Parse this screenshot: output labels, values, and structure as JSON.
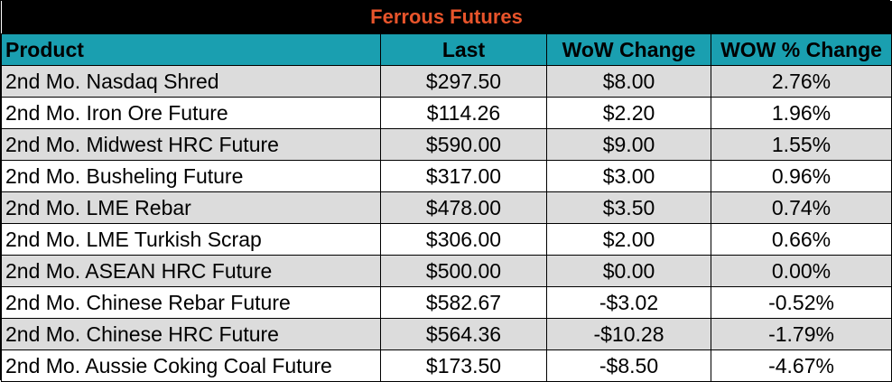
{
  "title": "Ferrous Futures",
  "colors": {
    "title_bg": "#000000",
    "title_text": "#e8542b",
    "header_bg": "#1a9fb0",
    "row_shade": "#dcdcdc",
    "row_plain": "#ffffff"
  },
  "headers": {
    "product": "Product",
    "last": "Last",
    "wow_change": "WoW Change",
    "wow_pct_change": "WOW % Change"
  },
  "rows": [
    {
      "product": "2nd Mo. Nasdaq Shred",
      "last": "$297.50",
      "wow_change": "$8.00",
      "wow_pct_change": "2.76%"
    },
    {
      "product": "2nd Mo. Iron Ore Future",
      "last": "$114.26",
      "wow_change": "$2.20",
      "wow_pct_change": "1.96%"
    },
    {
      "product": "2nd Mo. Midwest HRC Future",
      "last": "$590.00",
      "wow_change": "$9.00",
      "wow_pct_change": "1.55%"
    },
    {
      "product": "2nd Mo. Busheling Future",
      "last": "$317.00",
      "wow_change": "$3.00",
      "wow_pct_change": "0.96%"
    },
    {
      "product": "2nd Mo. LME Rebar",
      "last": "$478.00",
      "wow_change": "$3.50",
      "wow_pct_change": "0.74%"
    },
    {
      "product": "2nd Mo. LME Turkish Scrap",
      "last": "$306.00",
      "wow_change": "$2.00",
      "wow_pct_change": "0.66%"
    },
    {
      "product": "2nd Mo. ASEAN HRC Future",
      "last": "$500.00",
      "wow_change": "$0.00",
      "wow_pct_change": "0.00%"
    },
    {
      "product": "2nd Mo. Chinese Rebar Future",
      "last": "$582.67",
      "wow_change": "-$3.02",
      "wow_pct_change": "-0.52%"
    },
    {
      "product": "2nd Mo. Chinese HRC Future",
      "last": "$564.36",
      "wow_change": "-$10.28",
      "wow_pct_change": "-1.79%"
    },
    {
      "product": "2nd Mo. Aussie Coking Coal Future",
      "last": "$173.50",
      "wow_change": "-$8.50",
      "wow_pct_change": "-4.67%"
    }
  ]
}
